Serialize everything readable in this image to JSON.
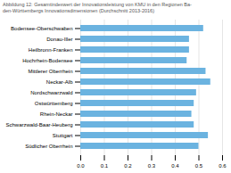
{
  "chart_data": {
    "type": "bar",
    "orientation": "horizontal",
    "title": "Abbildung 12:   Gesamtindexwert der Innovationsleistung von KMU in den Regionen Ba-",
    "subtitle": "den-Württembergs Innovationsdimensionen (Durchschnitt 2013-2016)",
    "categories": [
      "Bodensee-Oberschwaben",
      "Donau-Iller",
      "Heilbronn-Franken",
      "Hochrhein-Bodensee",
      "Mittlerer Oberrhein",
      "Neckar-Alb",
      "Nordschwarzwald",
      "Ostwürttemberg",
      "Rhein-Neckar",
      "Schwarzwald-Baar-Heuberg",
      "Stuttgart",
      "Südlicher Oberrhein"
    ],
    "values": [
      0.52,
      0.46,
      0.46,
      0.45,
      0.53,
      0.55,
      0.49,
      0.48,
      0.47,
      0.48,
      0.54,
      0.5
    ],
    "color": "#6BB3E0",
    "xlim": [
      0.0,
      0.6
    ],
    "xticks": [
      {
        "value": 0,
        "label": "0.0"
      },
      0.1,
      0.2,
      0.3,
      0.4,
      0.5,
      0.6
    ],
    "grid": true
  }
}
